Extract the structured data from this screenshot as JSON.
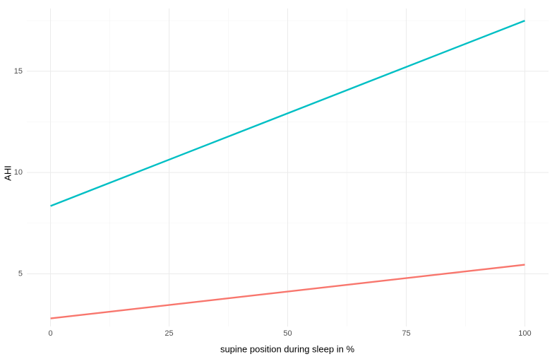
{
  "chart_data": {
    "type": "line",
    "x": [
      0,
      100
    ],
    "series": [
      {
        "color": "#00BFC4",
        "values": [
          8.35,
          17.5
        ]
      },
      {
        "color": "#F8766D",
        "values": [
          2.8,
          5.45
        ]
      }
    ],
    "xlabel": "supine position during sleep in %",
    "ylabel": "AHI",
    "xlim": [
      -5,
      105
    ],
    "xticks": [
      0,
      25,
      50,
      75,
      100
    ],
    "xminor": [
      12.5,
      37.5,
      62.5,
      87.5
    ],
    "ylim": [
      2.4,
      18.1
    ],
    "yticks": [
      5,
      10,
      15
    ],
    "yminor": [
      7.5,
      12.5,
      17.5
    ],
    "grid": true
  }
}
